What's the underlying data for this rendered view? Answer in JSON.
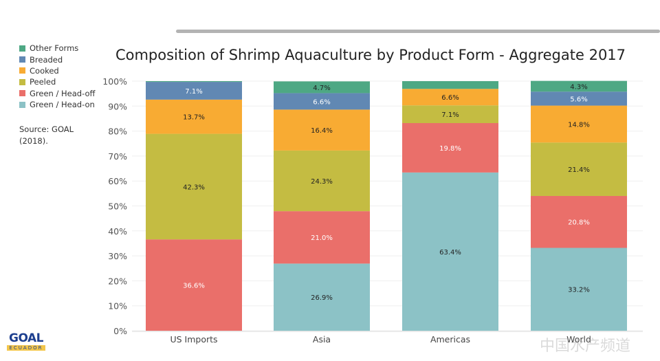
{
  "chart_data": {
    "type": "bar",
    "stacked": true,
    "title": "Composition of Shrimp Aquaculture by Product Form - Aggregate 2017",
    "categories": [
      "US Imports",
      "Asia",
      "Americas",
      "World"
    ],
    "ylim": [
      0,
      100
    ],
    "yticks": [
      "0%",
      "10%",
      "20%",
      "30%",
      "40%",
      "50%",
      "60%",
      "70%",
      "80%",
      "90%",
      "100%"
    ],
    "grid": true,
    "legend_position": "left",
    "series": [
      {
        "name": "Green / Head-on",
        "color": "#8cc2c6",
        "values": [
          0,
          26.9,
          63.4,
          33.2
        ],
        "labels": [
          "",
          "26.9%",
          "63.4%",
          "33.2%"
        ],
        "label_color": "#222"
      },
      {
        "name": "Green / Head-off",
        "color": "#ea6f6a",
        "values": [
          36.6,
          21.0,
          19.8,
          20.8
        ],
        "labels": [
          "36.6%",
          "21.0%",
          "19.8%",
          "20.8%"
        ],
        "label_color": "#fff"
      },
      {
        "name": "Peeled",
        "color": "#c4bc42",
        "values": [
          42.3,
          24.3,
          7.1,
          21.4
        ],
        "labels": [
          "42.3%",
          "24.3%",
          "7.1%",
          "21.4%"
        ],
        "label_color": "#222"
      },
      {
        "name": "Cooked",
        "color": "#f8ab33",
        "values": [
          13.7,
          16.4,
          6.6,
          14.8
        ],
        "labels": [
          "13.7%",
          "16.4%",
          "6.6%",
          "14.8%"
        ],
        "label_color": "#222"
      },
      {
        "name": "Breaded",
        "color": "#6188b3",
        "values": [
          7.1,
          6.6,
          0,
          5.6
        ],
        "labels": [
          "7.1%",
          "6.6%",
          "",
          "5.6%"
        ],
        "label_color": "#fff"
      },
      {
        "name": "Other Forms",
        "color": "#4ea884",
        "values": [
          0.3,
          4.7,
          3.1,
          4.3
        ],
        "labels": [
          "",
          "4.7%",
          "",
          "4.3%"
        ],
        "label_color": "#222"
      }
    ]
  },
  "legend_order": [
    "Other Forms",
    "Breaded",
    "Cooked",
    "Peeled",
    "Green / Head-off",
    "Green / Head-on"
  ],
  "source": "Source: GOAL (2018).",
  "logo": {
    "line1": "GOAL",
    "line2": "ECUADOR"
  },
  "watermark": "中国水产频道"
}
